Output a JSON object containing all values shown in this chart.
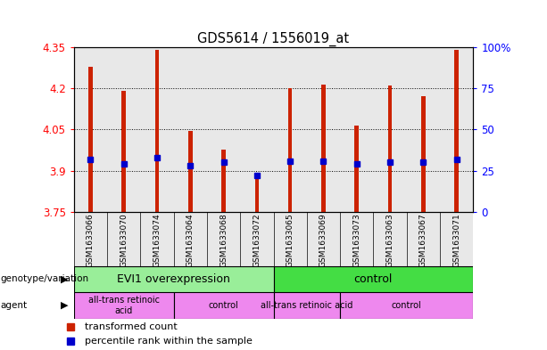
{
  "title": "GDS5614 / 1556019_at",
  "samples": [
    "GSM1633066",
    "GSM1633070",
    "GSM1633074",
    "GSM1633064",
    "GSM1633068",
    "GSM1633072",
    "GSM1633065",
    "GSM1633069",
    "GSM1633073",
    "GSM1633063",
    "GSM1633067",
    "GSM1633071"
  ],
  "transformed_counts": [
    4.28,
    4.19,
    4.34,
    4.045,
    3.975,
    3.88,
    4.2,
    4.215,
    4.065,
    4.21,
    4.17,
    4.34
  ],
  "percentile_ranks": [
    32,
    29,
    33,
    28,
    30,
    22,
    31,
    31,
    29,
    30,
    30,
    32
  ],
  "ylim_left": [
    3.75,
    4.35
  ],
  "ylim_right": [
    0,
    100
  ],
  "yticks_left": [
    3.75,
    3.9,
    4.05,
    4.2,
    4.35
  ],
  "yticks_right": [
    0,
    25,
    50,
    75,
    100
  ],
  "ytick_labels_left": [
    "3.75",
    "3.9",
    "4.05",
    "4.2",
    "4.35"
  ],
  "ytick_labels_right": [
    "0",
    "25",
    "50",
    "75",
    "100%"
  ],
  "bar_color": "#cc2200",
  "dot_color": "#0000cc",
  "bar_width": 0.12,
  "groups": [
    {
      "label": "EVI1 overexpression",
      "color": "#99ee99",
      "start": 0,
      "end": 5
    },
    {
      "label": "control",
      "color": "#44dd44",
      "start": 6,
      "end": 11
    }
  ],
  "agents": [
    {
      "label": "all-trans retinoic\nacid",
      "start": 0,
      "end": 2
    },
    {
      "label": "control",
      "start": 3,
      "end": 5
    },
    {
      "label": "all-trans retinoic acid",
      "start": 6,
      "end": 7
    },
    {
      "label": "control",
      "start": 8,
      "end": 11
    }
  ],
  "agent_color": "#ee88ee",
  "legend_items": [
    {
      "label": "transformed count",
      "color": "#cc2200"
    },
    {
      "label": "percentile rank within the sample",
      "color": "#0000cc"
    }
  ],
  "tick_bg_color": "#cccccc",
  "plot_bg_color": "#ffffff"
}
